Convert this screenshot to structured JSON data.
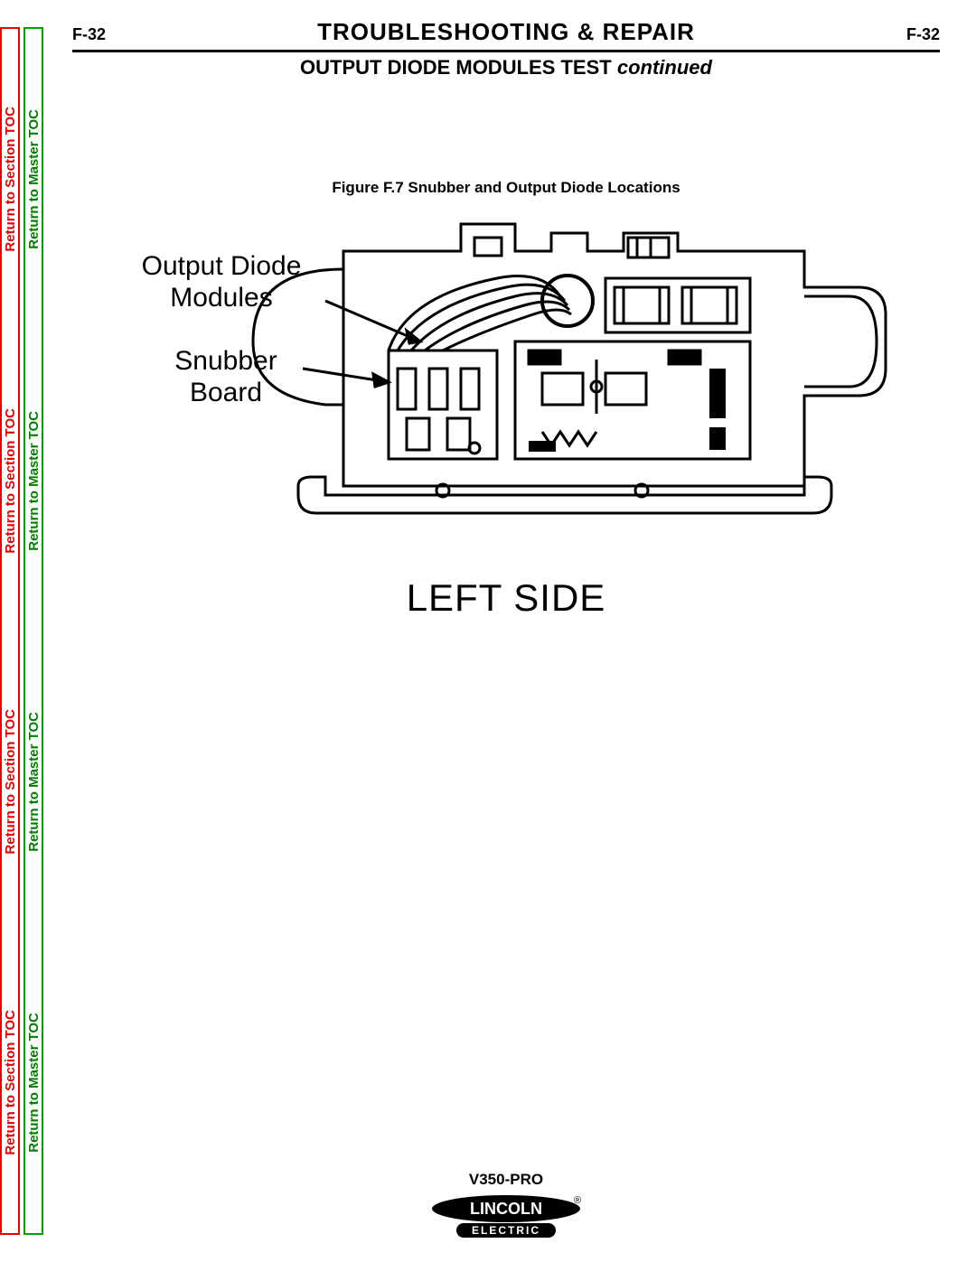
{
  "page_code": "F-32",
  "main_title": "TROUBLESHOOTING & REPAIR",
  "subtitle_main": "OUTPUT DIODE MODULES TEST",
  "subtitle_suffix": "continued",
  "figure_caption": "Figure F.7 Snubber and Output Diode Locations",
  "callouts": {
    "output_diode": "Output Diode\nModules",
    "snubber": "Snubber\nBoard"
  },
  "side_label": "LEFT SIDE",
  "nav": {
    "section": "Return to Section TOC",
    "master": "Return to Master TOC"
  },
  "footer": {
    "model": "V350-PRO",
    "brand_top": "LINCOLN",
    "brand_bottom": "ELECTRIC"
  },
  "colors": {
    "red": "#e60000",
    "green": "#008000",
    "black": "#000000",
    "white": "#ffffff"
  }
}
